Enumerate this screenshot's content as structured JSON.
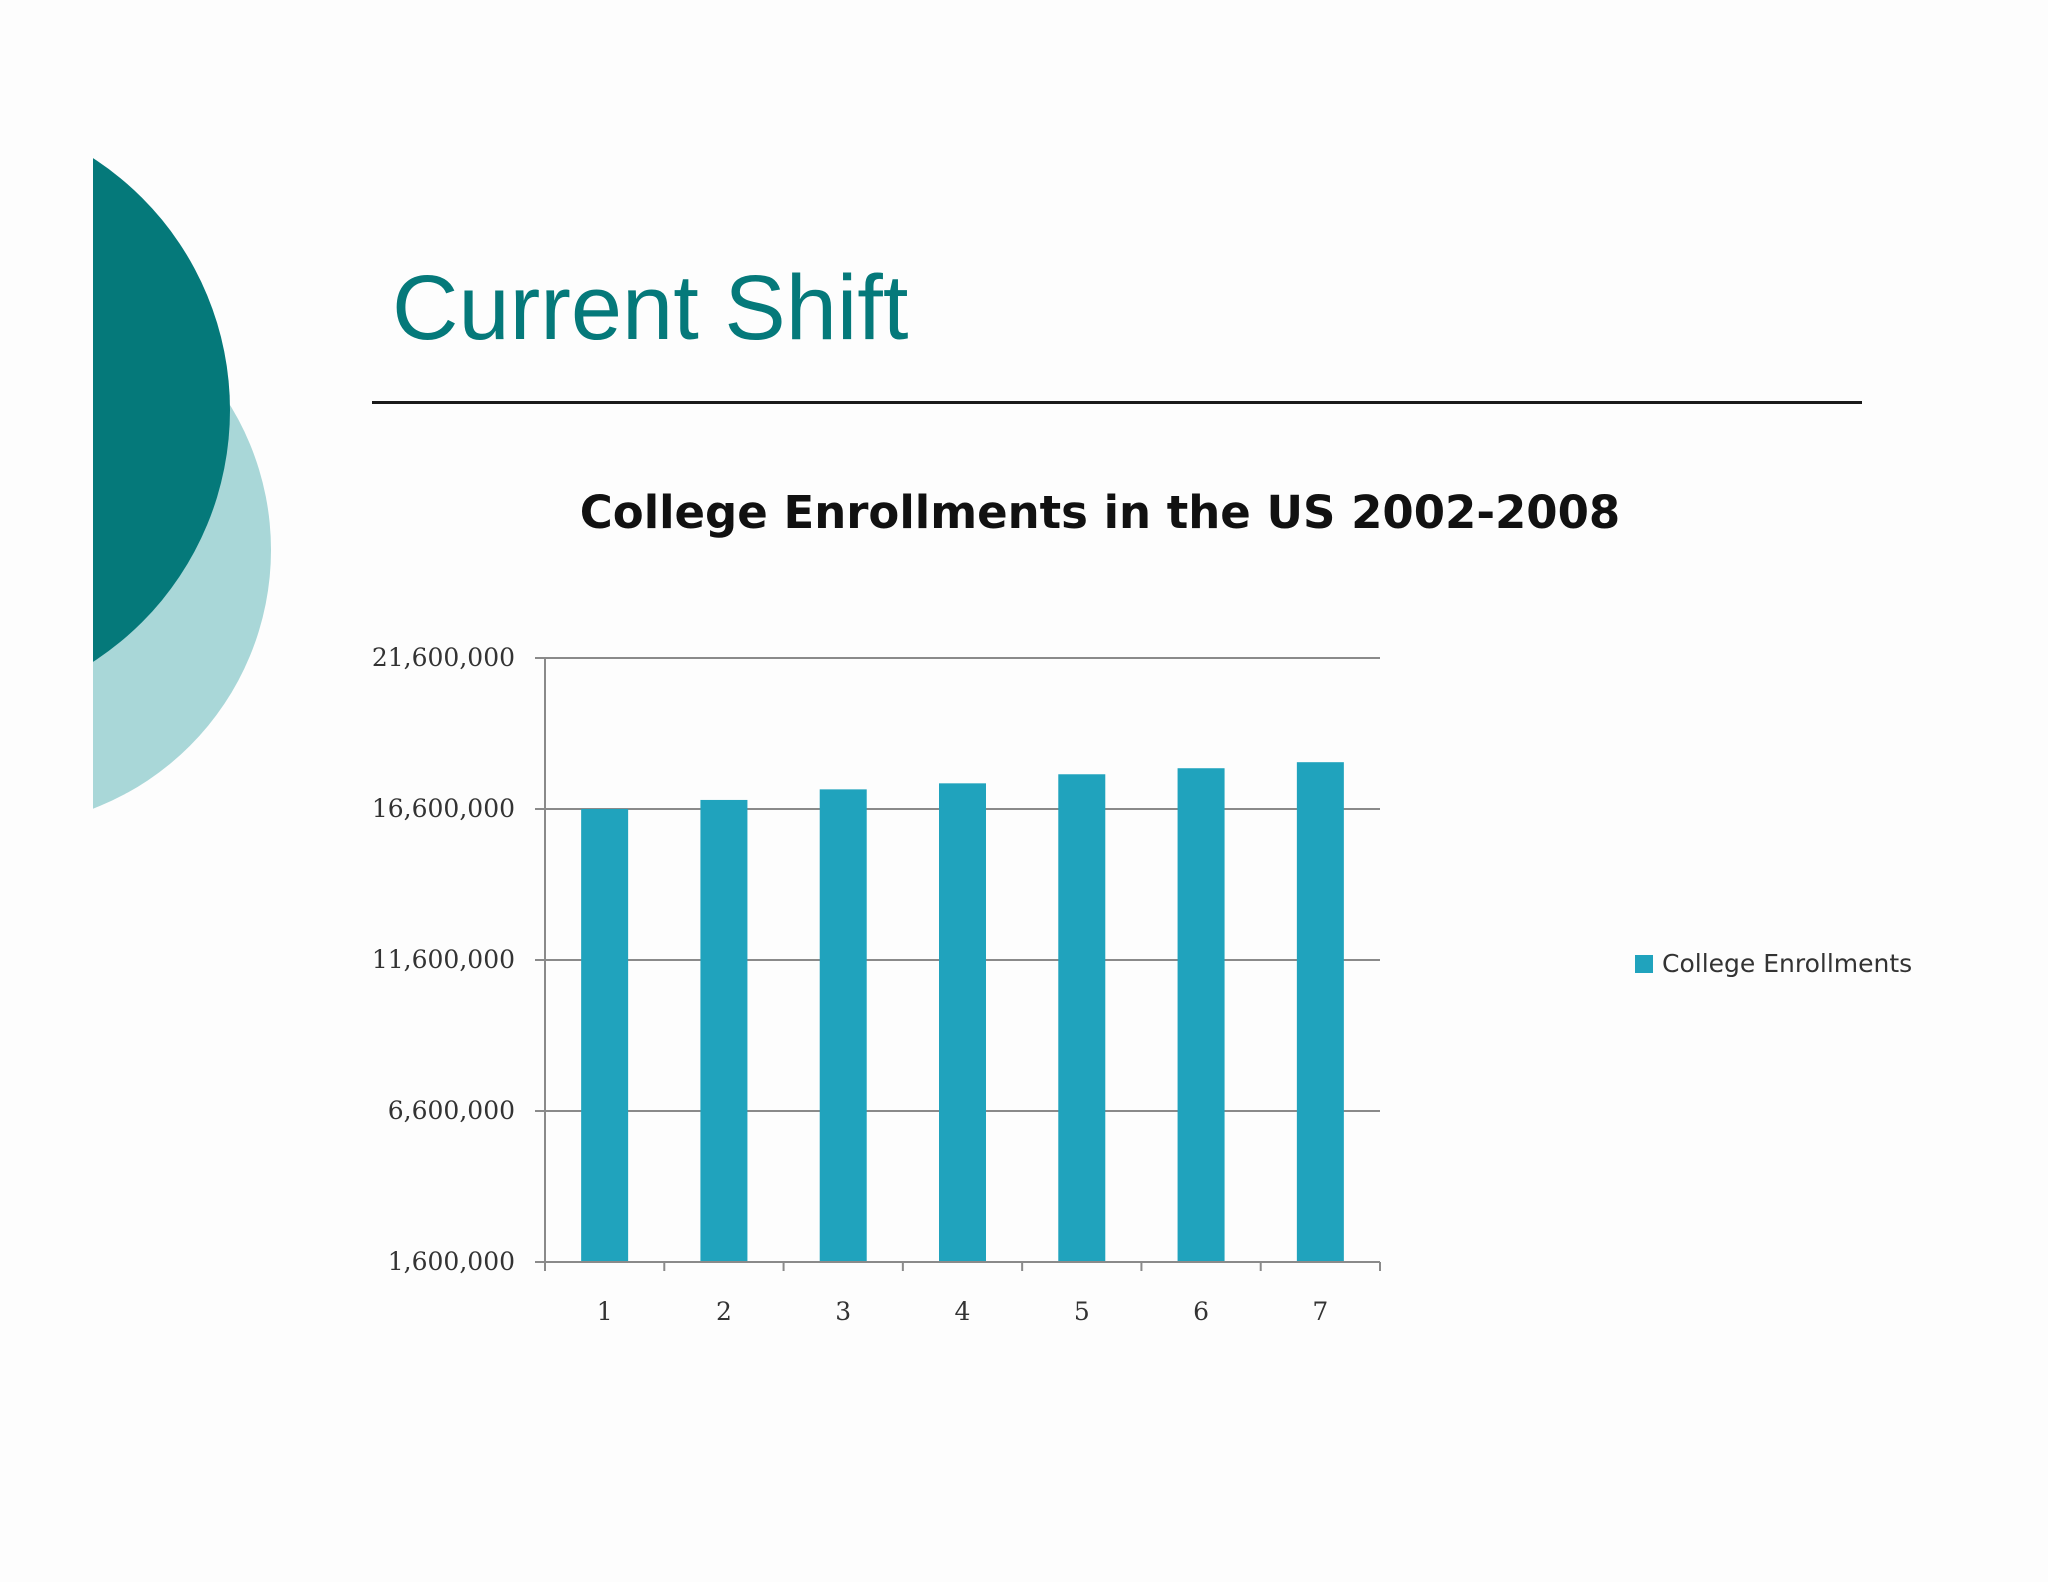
{
  "slide": {
    "title": "Current Shift"
  },
  "colors": {
    "title": "#05797a",
    "deco_dark": "#05797a",
    "deco_light": "#a9d7d8",
    "bar": "#20a3bd",
    "gridline": "#8a8a8a"
  },
  "chart_data": {
    "type": "bar",
    "title": "College Enrollments in the US 2002-2008",
    "categories": [
      "1",
      "2",
      "3",
      "4",
      "5",
      "6",
      "7"
    ],
    "series": [
      {
        "name": "College Enrollments",
        "values": [
          16600000,
          16900000,
          17250000,
          17450000,
          17750000,
          17950000,
          18150000
        ]
      }
    ],
    "ylim": [
      1600000,
      21600000
    ],
    "yticks": [
      1600000,
      6600000,
      11600000,
      16600000,
      21600000
    ],
    "ytick_labels": [
      "1,600,000",
      "6,600,000",
      "11,600,000",
      "16,600,000",
      "21,600,000"
    ],
    "xlabel": "",
    "ylabel": "",
    "grid": true,
    "legend_position": "right"
  }
}
